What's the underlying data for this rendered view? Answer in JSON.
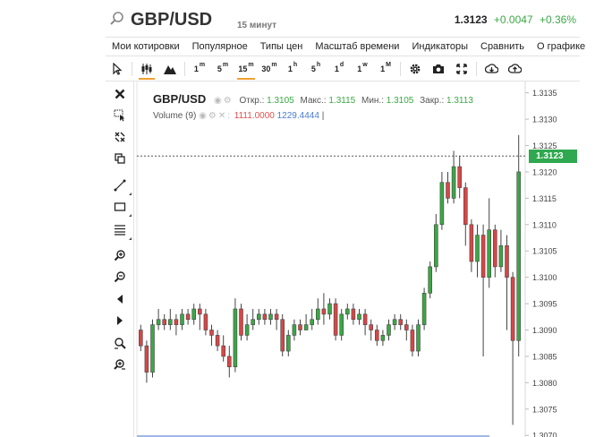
{
  "header": {
    "symbol": "GBP/USD",
    "timeframe": "15 минут",
    "last": "1.3123",
    "change": "+0.0047",
    "change_pct": "+0.36%"
  },
  "menu": [
    "Мои котировки",
    "Популярное",
    "Типы цен",
    "Масштаб времени",
    "Индикаторы",
    "Сравнить",
    "О графике"
  ],
  "toolbar": {
    "timeframes": [
      {
        "label": "1",
        "sup": "m"
      },
      {
        "label": "5",
        "sup": "m"
      },
      {
        "label": "15",
        "sup": "m",
        "active": true
      },
      {
        "label": "30",
        "sup": "m"
      },
      {
        "label": "1",
        "sup": "h"
      },
      {
        "label": "5",
        "sup": "h"
      },
      {
        "label": "1",
        "sup": "d"
      },
      {
        "label": "1",
        "sup": "w"
      },
      {
        "label": "1",
        "sup": "M"
      }
    ],
    "icons": [
      "cursor-icon",
      "candles-icon",
      "mountain-icon",
      "gear-icon",
      "camera-icon",
      "fullscreen-icon",
      "download-icon",
      "upload-icon"
    ]
  },
  "legend": {
    "symbol": "GBP/USD",
    "open_label": "Откр.:",
    "open": "1.3105",
    "high_label": "Макс.:",
    "high": "1.3115",
    "low_label": "Мин.:",
    "low": "1.3105",
    "close_label": "Закр.:",
    "close": "1.3113",
    "volume_label": "Volume (9)",
    "volume_1": "1111.0000",
    "volume_2": "1229.4444"
  },
  "colors": {
    "up": "#3aa845",
    "down": "#d84646",
    "accent": "#f0a030",
    "price_tag": "#2fa84f"
  },
  "chart_data": {
    "type": "candlestick",
    "title": "GBP/USD",
    "ylim": [
      1.3068,
      1.3138
    ],
    "y_ticks": [
      "1.3135",
      "1.3130",
      "1.3125",
      "1.3120",
      "1.3115",
      "1.3110",
      "1.3105",
      "1.3100",
      "1.3095",
      "1.3090",
      "1.3085",
      "1.3080",
      "1.3075",
      "1.3070"
    ],
    "current_price": 1.3123,
    "current_price_label": "1.3123",
    "candles": [
      [
        1.309,
        1.3087,
        1.3091,
        1.3086
      ],
      [
        1.3087,
        1.3082,
        1.3088,
        1.308
      ],
      [
        1.3082,
        1.3091,
        1.3092,
        1.3081
      ],
      [
        1.3091,
        1.3092,
        1.3094,
        1.309
      ],
      [
        1.3092,
        1.3091,
        1.3093,
        1.309
      ],
      [
        1.3091,
        1.3092,
        1.3094,
        1.309
      ],
      [
        1.3092,
        1.3091,
        1.3093,
        1.3089
      ],
      [
        1.3091,
        1.3093,
        1.3094,
        1.309
      ],
      [
        1.3093,
        1.3092,
        1.3094,
        1.3091
      ],
      [
        1.3092,
        1.3094,
        1.3095,
        1.3091
      ],
      [
        1.3094,
        1.3093,
        1.3095,
        1.309
      ],
      [
        1.3093,
        1.309,
        1.3094,
        1.3089
      ],
      [
        1.309,
        1.3089,
        1.3091,
        1.3087
      ],
      [
        1.3089,
        1.3087,
        1.309,
        1.3086
      ],
      [
        1.3087,
        1.3085,
        1.3089,
        1.3084
      ],
      [
        1.3085,
        1.3083,
        1.3087,
        1.3081
      ],
      [
        1.3083,
        1.3094,
        1.3096,
        1.3082
      ],
      [
        1.3094,
        1.3089,
        1.3095,
        1.3088
      ],
      [
        1.3089,
        1.3091,
        1.3093,
        1.3088
      ],
      [
        1.3091,
        1.3092,
        1.3094,
        1.309
      ],
      [
        1.3092,
        1.3093,
        1.3094,
        1.3091
      ],
      [
        1.3093,
        1.3092,
        1.3094,
        1.3091
      ],
      [
        1.3092,
        1.3093,
        1.3094,
        1.3091
      ],
      [
        1.3093,
        1.3092,
        1.3094,
        1.309
      ],
      [
        1.3092,
        1.3086,
        1.3093,
        1.3085
      ],
      [
        1.3086,
        1.3089,
        1.309,
        1.3085
      ],
      [
        1.3089,
        1.3091,
        1.3092,
        1.3088
      ],
      [
        1.3091,
        1.309,
        1.3092,
        1.3089
      ],
      [
        1.309,
        1.3091,
        1.3093,
        1.309
      ],
      [
        1.3091,
        1.3092,
        1.3094,
        1.309
      ],
      [
        1.3092,
        1.3094,
        1.3096,
        1.3091
      ],
      [
        1.3094,
        1.3093,
        1.3097,
        1.3091
      ],
      [
        1.3093,
        1.3095,
        1.3096,
        1.3092
      ],
      [
        1.3095,
        1.3089,
        1.3096,
        1.3088
      ],
      [
        1.3089,
        1.3093,
        1.3094,
        1.3088
      ],
      [
        1.3093,
        1.3094,
        1.3095,
        1.3092
      ],
      [
        1.3094,
        1.3092,
        1.3095,
        1.3091
      ],
      [
        1.3092,
        1.3093,
        1.3094,
        1.3091
      ],
      [
        1.3093,
        1.3091,
        1.3094,
        1.3089
      ],
      [
        1.3091,
        1.309,
        1.3092,
        1.3088
      ],
      [
        1.309,
        1.3088,
        1.3091,
        1.3087
      ],
      [
        1.3088,
        1.3089,
        1.309,
        1.3087
      ],
      [
        1.3089,
        1.3091,
        1.3092,
        1.3088
      ],
      [
        1.3091,
        1.3092,
        1.3093,
        1.309
      ],
      [
        1.3092,
        1.3091,
        1.3093,
        1.309
      ],
      [
        1.3091,
        1.309,
        1.3092,
        1.3088
      ],
      [
        1.309,
        1.3086,
        1.3091,
        1.3085
      ],
      [
        1.3086,
        1.3091,
        1.3092,
        1.3085
      ],
      [
        1.3091,
        1.3097,
        1.3098,
        1.309
      ],
      [
        1.3097,
        1.3102,
        1.3103,
        1.3096
      ],
      [
        1.3102,
        1.311,
        1.3112,
        1.3101
      ],
      [
        1.311,
        1.3118,
        1.312,
        1.3109
      ],
      [
        1.3118,
        1.3115,
        1.312,
        1.3114
      ],
      [
        1.3115,
        1.3121,
        1.3124,
        1.3114
      ],
      [
        1.3121,
        1.3117,
        1.3123,
        1.3115
      ],
      [
        1.3117,
        1.311,
        1.3118,
        1.3106
      ],
      [
        1.311,
        1.3103,
        1.3111,
        1.3101
      ],
      [
        1.3103,
        1.3108,
        1.311,
        1.31
      ],
      [
        1.3108,
        1.31,
        1.311,
        1.3085
      ],
      [
        1.31,
        1.3109,
        1.3115,
        1.3098
      ],
      [
        1.3109,
        1.3102,
        1.311,
        1.31
      ],
      [
        1.3102,
        1.3106,
        1.3109,
        1.3101
      ],
      [
        1.3106,
        1.31,
        1.3108,
        1.309
      ],
      [
        1.31,
        1.3088,
        1.3101,
        1.3072
      ],
      [
        1.3088,
        1.312,
        1.3127,
        1.3085
      ]
    ]
  }
}
